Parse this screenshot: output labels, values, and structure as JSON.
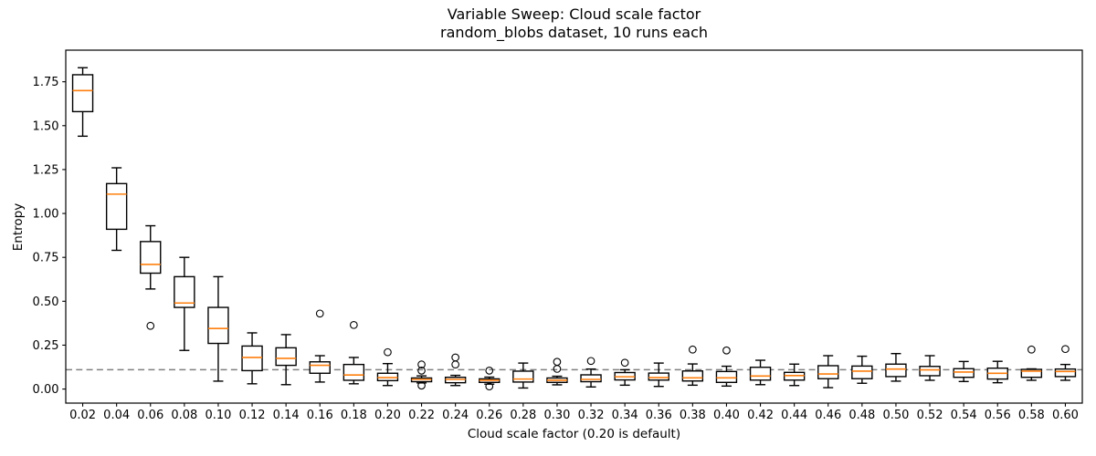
{
  "title": {
    "line1": "Variable Sweep: Cloud scale factor",
    "line2": "random_blobs dataset, 10 runs each"
  },
  "axes": {
    "xlabel": "Cloud scale factor (0.20 is default)",
    "ylabel": "Entropy",
    "x_tick_labels": [
      "0.02",
      "0.04",
      "0.06",
      "0.08",
      "0.10",
      "0.12",
      "0.14",
      "0.16",
      "0.18",
      "0.20",
      "0.22",
      "0.24",
      "0.26",
      "0.28",
      "0.30",
      "0.32",
      "0.34",
      "0.36",
      "0.38",
      "0.40",
      "0.42",
      "0.44",
      "0.46",
      "0.48",
      "0.50",
      "0.52",
      "0.54",
      "0.56",
      "0.58",
      "0.60"
    ],
    "y_tick_labels": [
      "0.00",
      "0.25",
      "0.50",
      "0.75",
      "1.00",
      "1.25",
      "1.50",
      "1.75"
    ]
  },
  "style": {
    "median_color": "#ff7f0e",
    "box_edge_color": "#000000",
    "box_fill": "#ffffff",
    "reference_line_color": "#808080",
    "background": "#ffffff"
  },
  "chart_data": {
    "type": "boxplot",
    "title": "Variable Sweep: Cloud scale factor\nrandom_blobs dataset, 10 runs each",
    "xlabel": "Cloud scale factor (0.20 is default)",
    "ylabel": "Entropy",
    "ylim": [
      -0.08,
      1.93
    ],
    "grid": false,
    "legend": false,
    "runs_per_box": 10,
    "reference_line_y": 0.11,
    "categories": [
      0.02,
      0.04,
      0.06,
      0.08,
      0.1,
      0.12,
      0.14,
      0.16,
      0.18,
      0.2,
      0.22,
      0.24,
      0.26,
      0.28,
      0.3,
      0.32,
      0.34,
      0.36,
      0.38,
      0.4,
      0.42,
      0.44,
      0.46,
      0.48,
      0.5,
      0.52,
      0.54,
      0.56,
      0.58,
      0.6
    ],
    "boxes": [
      {
        "x": 0.02,
        "whisker_low": 1.44,
        "q1": 1.58,
        "median": 1.7,
        "q3": 1.79,
        "whisker_high": 1.83,
        "outliers": []
      },
      {
        "x": 0.04,
        "whisker_low": 0.79,
        "q1": 0.91,
        "median": 1.11,
        "q3": 1.17,
        "whisker_high": 1.26,
        "outliers": []
      },
      {
        "x": 0.06,
        "whisker_low": 0.57,
        "q1": 0.66,
        "median": 0.71,
        "q3": 0.84,
        "whisker_high": 0.93,
        "outliers": [
          0.36
        ]
      },
      {
        "x": 0.08,
        "whisker_low": 0.22,
        "q1": 0.465,
        "median": 0.49,
        "q3": 0.64,
        "whisker_high": 0.75,
        "outliers": []
      },
      {
        "x": 0.1,
        "whisker_low": 0.045,
        "q1": 0.26,
        "median": 0.345,
        "q3": 0.465,
        "whisker_high": 0.64,
        "outliers": []
      },
      {
        "x": 0.12,
        "whisker_low": 0.03,
        "q1": 0.105,
        "median": 0.18,
        "q3": 0.245,
        "whisker_high": 0.32,
        "outliers": []
      },
      {
        "x": 0.14,
        "whisker_low": 0.025,
        "q1": 0.135,
        "median": 0.175,
        "q3": 0.235,
        "whisker_high": 0.31,
        "outliers": []
      },
      {
        "x": 0.16,
        "whisker_low": 0.04,
        "q1": 0.09,
        "median": 0.135,
        "q3": 0.155,
        "whisker_high": 0.19,
        "outliers": [
          0.43
        ]
      },
      {
        "x": 0.18,
        "whisker_low": 0.03,
        "q1": 0.05,
        "median": 0.08,
        "q3": 0.14,
        "whisker_high": 0.18,
        "outliers": [
          0.365
        ]
      },
      {
        "x": 0.2,
        "whisker_low": 0.02,
        "q1": 0.048,
        "median": 0.065,
        "q3": 0.09,
        "whisker_high": 0.145,
        "outliers": [
          0.21
        ]
      },
      {
        "x": 0.22,
        "whisker_low": 0.035,
        "q1": 0.042,
        "median": 0.055,
        "q3": 0.063,
        "whisker_high": 0.075,
        "outliers": [
          0.14,
          0.105,
          0.02
        ]
      },
      {
        "x": 0.24,
        "whisker_low": 0.02,
        "q1": 0.036,
        "median": 0.055,
        "q3": 0.067,
        "whisker_high": 0.078,
        "outliers": [
          0.18,
          0.14
        ]
      },
      {
        "x": 0.26,
        "whisker_low": 0.028,
        "q1": 0.038,
        "median": 0.05,
        "q3": 0.058,
        "whisker_high": 0.068,
        "outliers": [
          0.105,
          0.015
        ]
      },
      {
        "x": 0.28,
        "whisker_low": 0.006,
        "q1": 0.04,
        "median": 0.057,
        "q3": 0.102,
        "whisker_high": 0.148,
        "outliers": []
      },
      {
        "x": 0.3,
        "whisker_low": 0.024,
        "q1": 0.038,
        "median": 0.05,
        "q3": 0.063,
        "whisker_high": 0.073,
        "outliers": [
          0.155,
          0.115
        ]
      },
      {
        "x": 0.32,
        "whisker_low": 0.012,
        "q1": 0.042,
        "median": 0.055,
        "q3": 0.081,
        "whisker_high": 0.114,
        "outliers": [
          0.16
        ]
      },
      {
        "x": 0.34,
        "whisker_low": 0.022,
        "q1": 0.052,
        "median": 0.07,
        "q3": 0.094,
        "whisker_high": 0.11,
        "outliers": [
          0.15
        ]
      },
      {
        "x": 0.36,
        "whisker_low": 0.015,
        "q1": 0.051,
        "median": 0.065,
        "q3": 0.091,
        "whisker_high": 0.148,
        "outliers": []
      },
      {
        "x": 0.38,
        "whisker_low": 0.022,
        "q1": 0.046,
        "median": 0.064,
        "q3": 0.103,
        "whisker_high": 0.143,
        "outliers": [
          0.225
        ]
      },
      {
        "x": 0.4,
        "whisker_low": 0.017,
        "q1": 0.038,
        "median": 0.064,
        "q3": 0.1,
        "whisker_high": 0.13,
        "outliers": [
          0.22
        ]
      },
      {
        "x": 0.42,
        "whisker_low": 0.025,
        "q1": 0.051,
        "median": 0.074,
        "q3": 0.124,
        "whisker_high": 0.164,
        "outliers": []
      },
      {
        "x": 0.44,
        "whisker_low": 0.02,
        "q1": 0.051,
        "median": 0.077,
        "q3": 0.095,
        "whisker_high": 0.142,
        "outliers": []
      },
      {
        "x": 0.46,
        "whisker_low": 0.008,
        "q1": 0.059,
        "median": 0.086,
        "q3": 0.133,
        "whisker_high": 0.19,
        "outliers": []
      },
      {
        "x": 0.48,
        "whisker_low": 0.033,
        "q1": 0.059,
        "median": 0.102,
        "q3": 0.131,
        "whisker_high": 0.187,
        "outliers": []
      },
      {
        "x": 0.5,
        "whisker_low": 0.045,
        "q1": 0.071,
        "median": 0.114,
        "q3": 0.142,
        "whisker_high": 0.202,
        "outliers": []
      },
      {
        "x": 0.52,
        "whisker_low": 0.05,
        "q1": 0.076,
        "median": 0.109,
        "q3": 0.129,
        "whisker_high": 0.19,
        "outliers": []
      },
      {
        "x": 0.54,
        "whisker_low": 0.043,
        "q1": 0.067,
        "median": 0.097,
        "q3": 0.116,
        "whisker_high": 0.157,
        "outliers": []
      },
      {
        "x": 0.56,
        "whisker_low": 0.036,
        "q1": 0.057,
        "median": 0.09,
        "q3": 0.119,
        "whisker_high": 0.158,
        "outliers": []
      },
      {
        "x": 0.58,
        "whisker_low": 0.05,
        "q1": 0.067,
        "median": 0.102,
        "q3": 0.112,
        "whisker_high": 0.115,
        "outliers": [
          0.225
        ]
      },
      {
        "x": 0.6,
        "whisker_low": 0.05,
        "q1": 0.071,
        "median": 0.1,
        "q3": 0.114,
        "whisker_high": 0.14,
        "outliers": [
          0.228
        ]
      }
    ]
  }
}
